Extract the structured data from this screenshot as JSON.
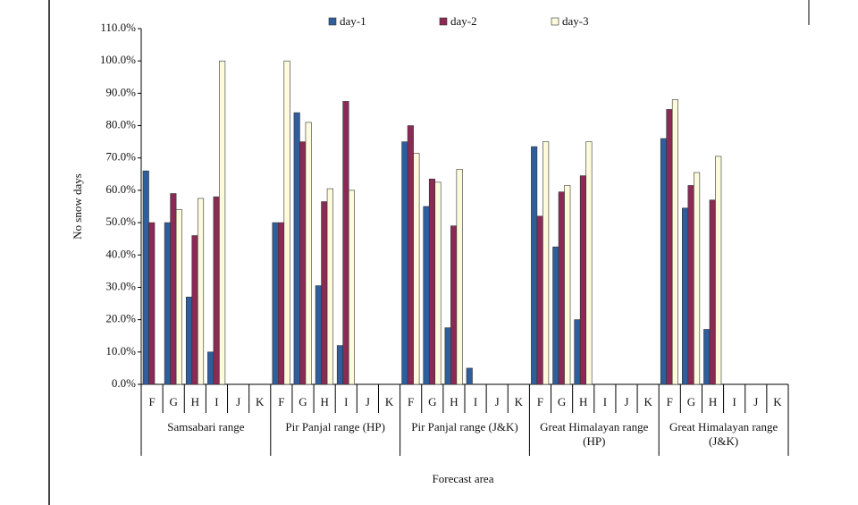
{
  "chart_data": {
    "type": "bar",
    "y_label": "No snow days",
    "x_label": "Forecast area",
    "groups": [
      {
        "name": "Samsabari range",
        "categories": [
          "F",
          "G",
          "H",
          "I",
          "J",
          "K"
        ]
      },
      {
        "name": "Pir Panjal range (HP)",
        "categories": [
          "F",
          "G",
          "H",
          "I",
          "J",
          "K"
        ]
      },
      {
        "name": "Pir Panjal range (J&K)",
        "categories": [
          "F",
          "G",
          "H",
          "I",
          "J",
          "K"
        ]
      },
      {
        "name": "Great Himalayan range (HP)",
        "categories": [
          "F",
          "G",
          "H",
          "I",
          "J",
          "K"
        ]
      },
      {
        "name": "Great Himalayan range (J&K)",
        "categories": [
          "F",
          "G",
          "H",
          "I",
          "J",
          "K"
        ]
      }
    ],
    "series": [
      {
        "name": "day-1",
        "color": "#2f5e9c",
        "values": [
          66,
          50,
          27,
          10,
          null,
          null,
          50,
          84,
          30.5,
          12,
          null,
          null,
          75,
          55,
          17.5,
          5,
          null,
          null,
          73.5,
          42.5,
          20,
          null,
          null,
          null,
          76,
          54.5,
          17,
          null,
          null,
          null
        ]
      },
      {
        "name": "day-2",
        "color": "#8a2a55",
        "values": [
          50,
          59,
          46,
          58,
          null,
          null,
          50,
          75,
          56.5,
          87.5,
          null,
          null,
          80,
          63.5,
          49,
          null,
          null,
          null,
          52,
          59.5,
          64.5,
          null,
          null,
          null,
          85,
          61.5,
          57,
          null,
          null,
          null
        ]
      },
      {
        "name": "day-3",
        "color": "#fdfbdc",
        "values": [
          null,
          54,
          57.5,
          100,
          null,
          null,
          100,
          81,
          60.5,
          60,
          null,
          null,
          71.5,
          62.5,
          66.5,
          null,
          null,
          null,
          75,
          61.5,
          75,
          null,
          null,
          null,
          88,
          65.5,
          70.5,
          null,
          null,
          null
        ]
      }
    ],
    "ylim": [
      0,
      110
    ],
    "yticks": [
      {
        "value": 0,
        "label": "0.0%"
      },
      {
        "value": 10,
        "label": "10.0%"
      },
      {
        "value": 20,
        "label": "20.0%"
      },
      {
        "value": 30,
        "label": "30.0%"
      },
      {
        "value": 40,
        "label": "40.0%"
      },
      {
        "value": 50,
        "label": "50.0%"
      },
      {
        "value": 60,
        "label": "60.0%"
      },
      {
        "value": 70,
        "label": "70.0%"
      },
      {
        "value": 80,
        "label": "80.0%"
      },
      {
        "value": 90,
        "label": "90.0%"
      },
      {
        "value": 100,
        "label": "100.0%"
      },
      {
        "value": 110,
        "label": "110.0%"
      }
    ]
  }
}
